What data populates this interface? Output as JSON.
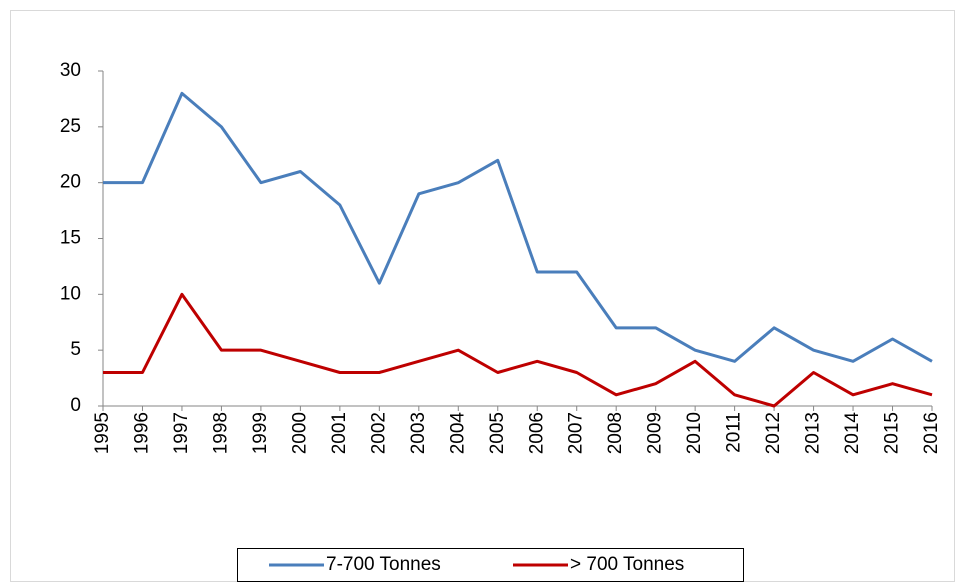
{
  "chart_data": {
    "type": "line",
    "categories": [
      "1995",
      "1996",
      "1997",
      "1998",
      "1999",
      "2000",
      "2001",
      "2002",
      "2003",
      "2004",
      "2005",
      "2006",
      "2007",
      "2008",
      "2009",
      "2010",
      "2011",
      "2012",
      "2013",
      "2014",
      "2015",
      "2016"
    ],
    "series": [
      {
        "name": "7-700 Tonnes",
        "color": "#4a7ebb",
        "values": [
          20,
          20,
          28,
          25,
          20,
          21,
          18,
          11,
          19,
          20,
          22,
          12,
          12,
          7,
          7,
          5,
          4,
          7,
          5,
          4,
          6,
          4
        ]
      },
      {
        "name": "> 700 Tonnes",
        "color": "#be0000",
        "values": [
          3,
          3,
          10,
          5,
          5,
          4,
          3,
          3,
          4,
          5,
          3,
          4,
          3,
          1,
          2,
          4,
          1,
          0,
          3,
          1,
          2,
          1
        ]
      }
    ],
    "ylim": [
      0,
      30
    ],
    "yticks": [
      0,
      5,
      10,
      15,
      20,
      25,
      30
    ],
    "grid": false,
    "legend": "bottom"
  }
}
